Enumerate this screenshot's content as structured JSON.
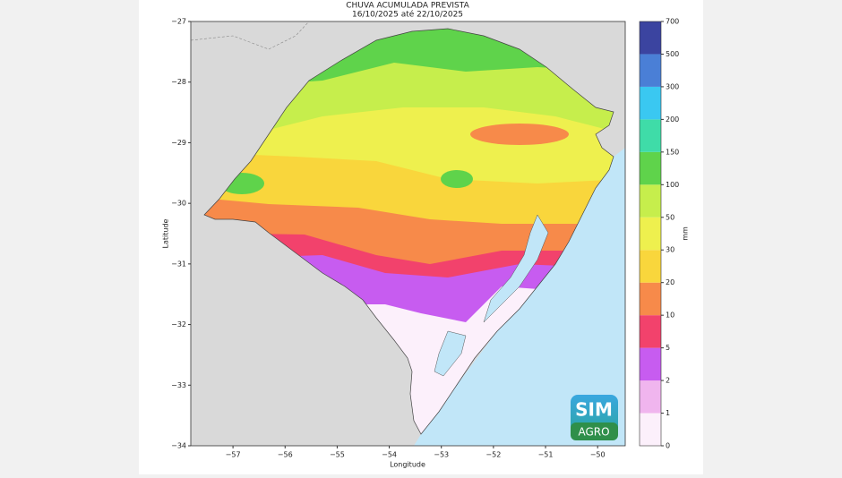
{
  "map": {
    "title": "CHUVA ACUMULADA PREVISTA",
    "subtitle": "16/10/2025 até 22/10/2025",
    "xlabel": "Longitude",
    "ylabel": "Latitude",
    "xlim": [
      -57.81,
      -49.47
    ],
    "ylim": [
      -34,
      -27
    ],
    "xticks": [
      {
        "value": -57,
        "label": "−57"
      },
      {
        "value": -56,
        "label": "−56"
      },
      {
        "value": -55,
        "label": "−55"
      },
      {
        "value": -54,
        "label": "−54"
      },
      {
        "value": -53,
        "label": "−53"
      },
      {
        "value": -52,
        "label": "−52"
      },
      {
        "value": -51,
        "label": "−51"
      },
      {
        "value": -50,
        "label": "−50"
      }
    ],
    "yticks": [
      {
        "value": -34,
        "label": "−34"
      },
      {
        "value": -33,
        "label": "−33"
      },
      {
        "value": -32,
        "label": "−32"
      },
      {
        "value": -31,
        "label": "−31"
      },
      {
        "value": -30,
        "label": "−30"
      },
      {
        "value": -29,
        "label": "−29"
      },
      {
        "value": -28,
        "label": "−28"
      },
      {
        "value": -27,
        "label": "−27"
      }
    ],
    "colorbar": {
      "label": "mm",
      "ticks": [
        0,
        1,
        2,
        5,
        10,
        20,
        30,
        50,
        100,
        150,
        200,
        300,
        500,
        700
      ],
      "colors": [
        "#fcf0fb",
        "#f0b5ee",
        "#c75cf0",
        "#f2426c",
        "#f78a4a",
        "#f9d63c",
        "#eef04e",
        "#c6ee4c",
        "#5fd34b",
        "#3fdca8",
        "#3ac8f1",
        "#4a7fd6",
        "#3b44a0"
      ]
    },
    "logo": {
      "top": "SIM",
      "bottom": "AGRO"
    }
  }
}
